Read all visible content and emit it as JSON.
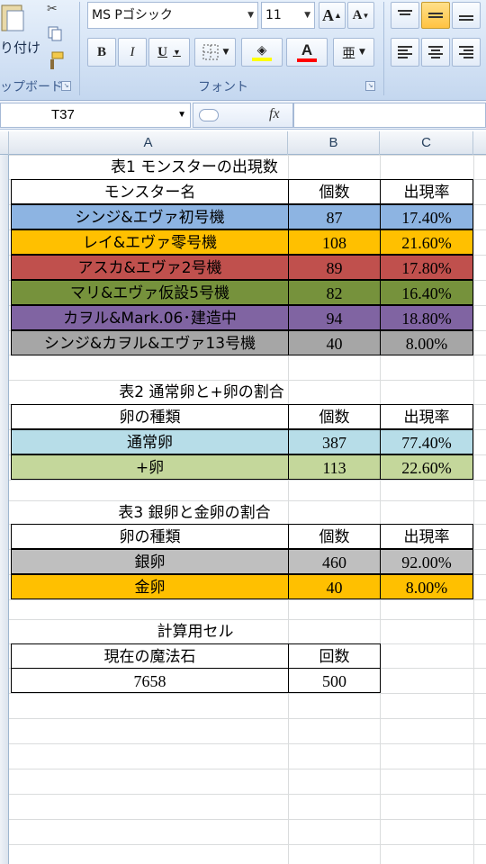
{
  "ribbon": {
    "paste_label": "り付け",
    "clipboard_label": "ップボード",
    "font_group_label": "フォント",
    "font_name": "MS Pゴシック",
    "font_size": "11",
    "bold": "B",
    "italic": "I",
    "underline": "U",
    "grow_font": "A",
    "shrink_font": "A",
    "font_color_letter": "A",
    "phonetic_letter": "亜"
  },
  "formula_bar": {
    "name_box": "T37",
    "fx": "fx",
    "formula": ""
  },
  "columns": [
    "A",
    "B",
    "C"
  ],
  "table1": {
    "title": "表1 モンスターの出現数",
    "headers": [
      "モンスター名",
      "個数",
      "出現率"
    ],
    "rows": [
      {
        "name": "シンジ&エヴァ初号機",
        "count": "87",
        "rate": "17.40%",
        "color": "#8db4e2"
      },
      {
        "name": "レイ&エヴァ零号機",
        "count": "108",
        "rate": "21.60%",
        "color": "#ffc000"
      },
      {
        "name": "アスカ&エヴァ2号機",
        "count": "89",
        "rate": "17.80%",
        "color": "#c0504d"
      },
      {
        "name": "マリ&エヴァ仮設5号機",
        "count": "82",
        "rate": "16.40%",
        "color": "#76923c"
      },
      {
        "name": "カヲル&Mark.06･建造中",
        "count": "94",
        "rate": "18.80%",
        "color": "#8064a2"
      },
      {
        "name": "シンジ&カヲル&エヴァ13号機",
        "count": "40",
        "rate": "8.00%",
        "color": "#a6a6a6"
      }
    ]
  },
  "table2": {
    "title": "表2 通常卵と+卵の割合",
    "headers": [
      "卵の種類",
      "個数",
      "出現率"
    ],
    "rows": [
      {
        "name": "通常卵",
        "count": "387",
        "rate": "77.40%",
        "color": "#b7dde8"
      },
      {
        "name": "+卵",
        "count": "113",
        "rate": "22.60%",
        "color": "#c4d79b"
      }
    ]
  },
  "table3": {
    "title": "表3 銀卵と金卵の割合",
    "headers": [
      "卵の種類",
      "個数",
      "出現率"
    ],
    "rows": [
      {
        "name": "銀卵",
        "count": "460",
        "rate": "92.00%",
        "color": "#bfbfbf"
      },
      {
        "name": "金卵",
        "count": "40",
        "rate": "8.00%",
        "color": "#ffc000"
      }
    ]
  },
  "calc": {
    "title": "計算用セル",
    "headers": [
      "現在の魔法石",
      "回数"
    ],
    "values": [
      "7658",
      "500"
    ]
  }
}
